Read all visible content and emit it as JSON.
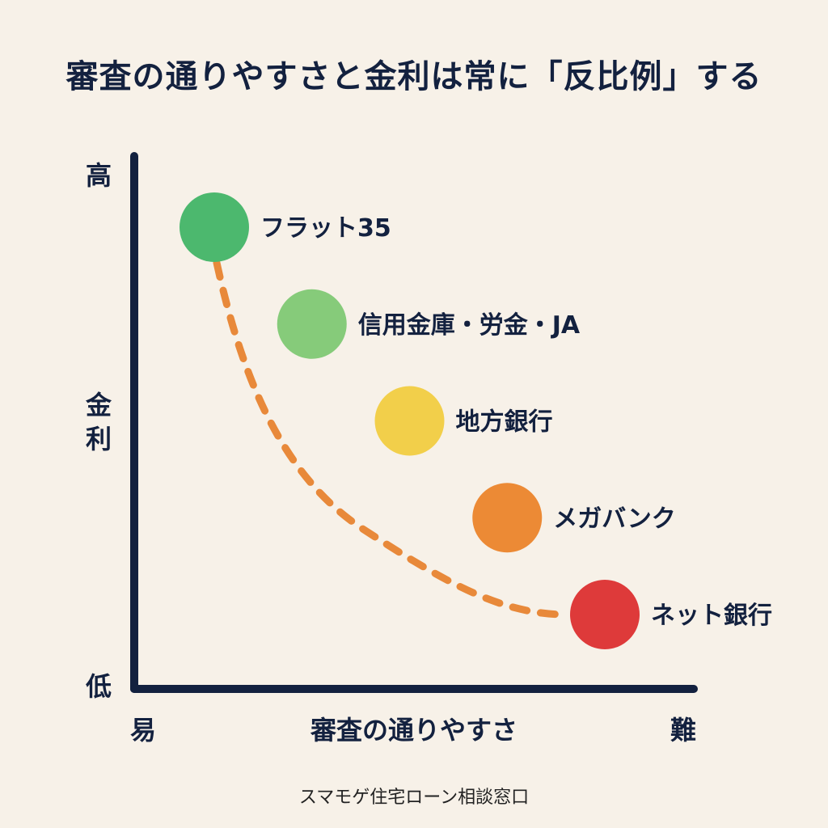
{
  "title": "審査の通りやすさと金利は常に「反比例」する",
  "footer": "スマモゲ住宅ローン相談窓口",
  "chart_data": {
    "type": "scatter",
    "title": "審査の通りやすさと金利は常に「反比例」する",
    "xlabel": "審査の通りやすさ",
    "ylabel": "金利",
    "x_ticks": {
      "low": "易",
      "high": "難"
    },
    "y_ticks": {
      "low": "低",
      "high": "高"
    },
    "x_order": "easy-to-hard",
    "y_order": "high-to-low",
    "grid": false,
    "trend_line": {
      "style": "dashed",
      "color": "#e8893a"
    },
    "series": [
      {
        "points": [
          {
            "label": "フラット35",
            "rank": 1,
            "color": "#4cb86e"
          },
          {
            "label": "信用金庫・労金・JA",
            "rank": 2,
            "color": "#86cb7a"
          },
          {
            "label": "地方銀行",
            "rank": 3,
            "color": "#f2cf4a"
          },
          {
            "label": "メガバンク",
            "rank": 4,
            "color": "#ec8a35"
          },
          {
            "label": "ネット銀行",
            "rank": 5,
            "color": "#de3a3a"
          }
        ]
      }
    ]
  }
}
